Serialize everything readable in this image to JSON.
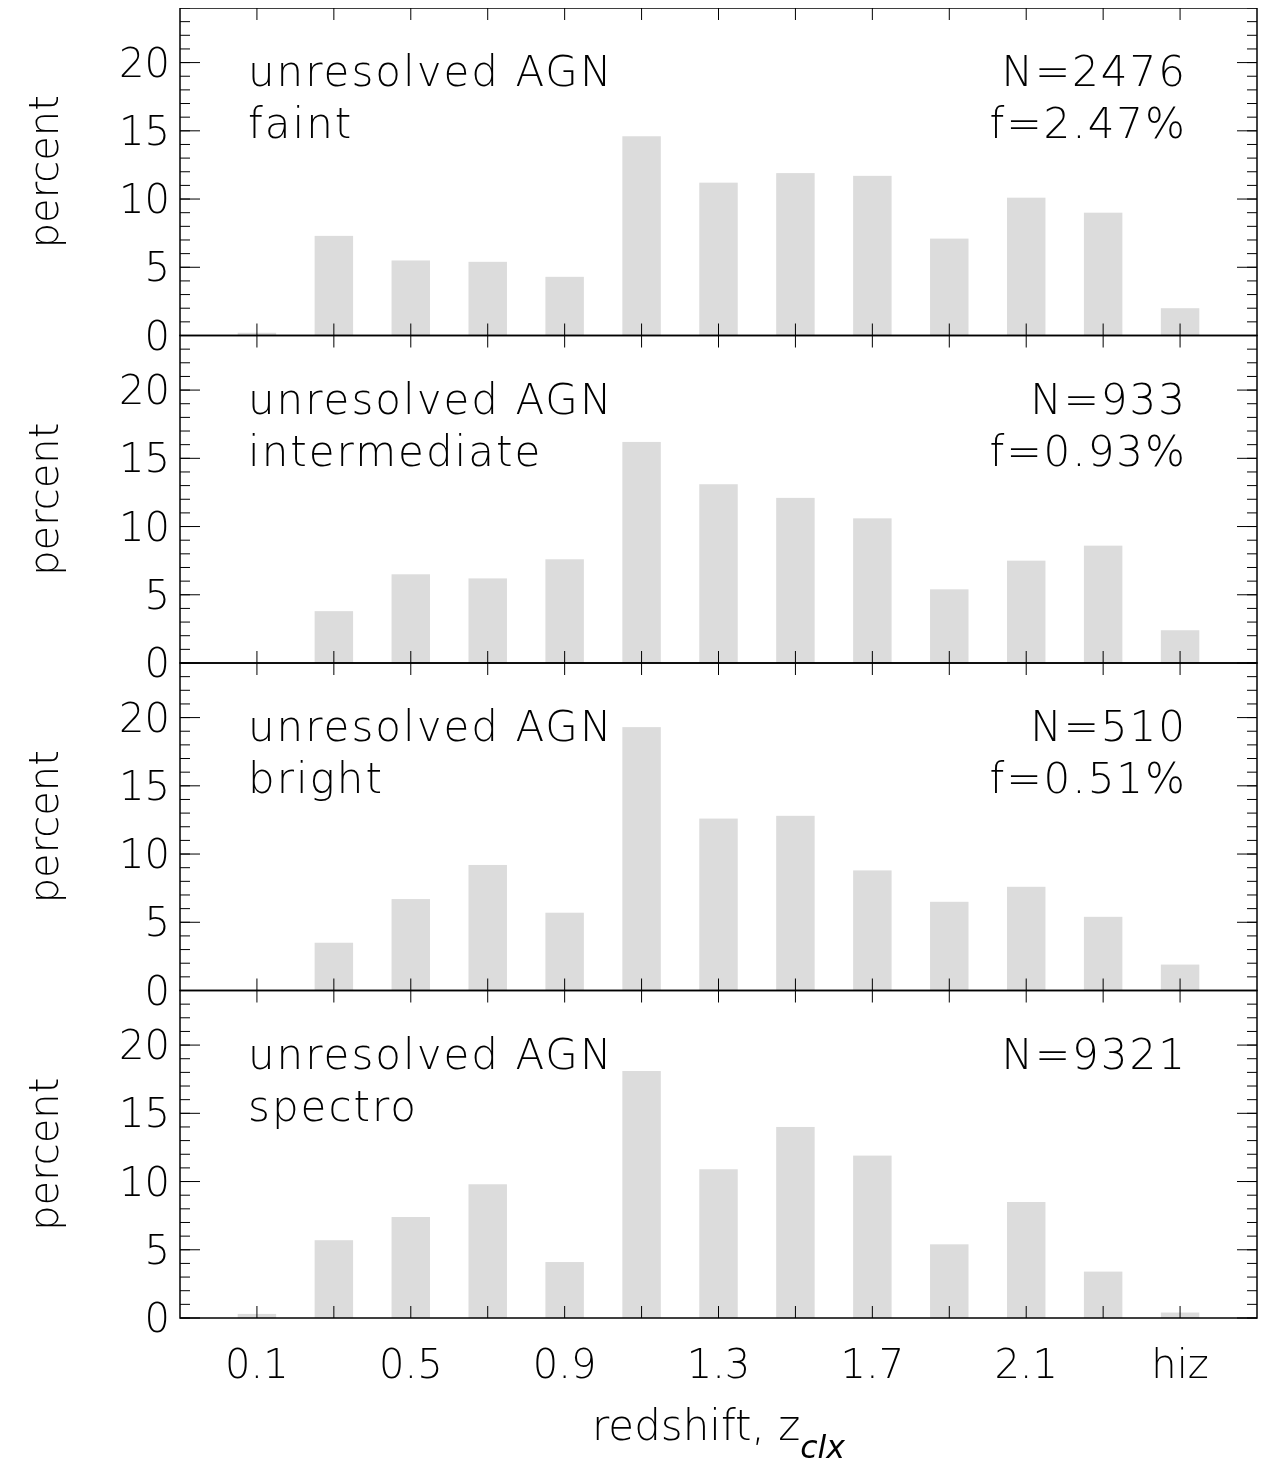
{
  "chart_data": [
    {
      "type": "bar",
      "title": "unresolved AGN",
      "subtitle": "faint",
      "annotations": [
        "N=2476",
        "f=2.47%"
      ],
      "ylabel": "percent",
      "categories": [
        null,
        null,
        null,
        null,
        null,
        null,
        null,
        null,
        null,
        null,
        null,
        null,
        null
      ],
      "values": [
        0.2,
        7.3,
        5.5,
        5.4,
        4.3,
        14.6,
        11.2,
        11.9,
        11.7,
        7.1,
        10.1,
        9.0,
        2.0
      ],
      "color": "#dcdcdc",
      "ylim": [
        0,
        24
      ],
      "yticks": [
        0,
        5,
        10,
        15,
        20
      ]
    },
    {
      "type": "bar",
      "title": "unresolved AGN",
      "subtitle": "intermediate",
      "annotations": [
        "N=933",
        "f=0.93%"
      ],
      "ylabel": "percent",
      "categories": [
        null,
        null,
        null,
        null,
        null,
        null,
        null,
        null,
        null,
        null,
        null,
        null,
        null
      ],
      "values": [
        0,
        3.8,
        6.5,
        6.2,
        7.6,
        16.2,
        13.1,
        12.1,
        10.6,
        5.4,
        7.5,
        8.6,
        2.4
      ],
      "color": "#dcdcdc",
      "ylim": [
        0,
        24
      ],
      "yticks": [
        0,
        5,
        10,
        15,
        20
      ]
    },
    {
      "type": "bar",
      "title": "unresolved AGN",
      "subtitle": "bright",
      "annotations": [
        "N=510",
        "f=0.51%"
      ],
      "ylabel": "percent",
      "categories": [
        null,
        null,
        null,
        null,
        null,
        null,
        null,
        null,
        null,
        null,
        null,
        null,
        null
      ],
      "values": [
        0,
        3.5,
        6.7,
        9.2,
        5.7,
        19.3,
        12.6,
        12.8,
        8.8,
        6.5,
        7.6,
        5.4,
        1.9
      ],
      "color": "#dcdcdc",
      "ylim": [
        0,
        24
      ],
      "yticks": [
        0,
        5,
        10,
        15,
        20
      ]
    },
    {
      "type": "bar",
      "title": "unresolved AGN",
      "subtitle": "spectro",
      "annotations": [
        "N=9321"
      ],
      "ylabel": "percent",
      "xlabel": "redshift, z$_{clx}$",
      "categories": [
        "0.1",
        null,
        "0.5",
        null,
        "0.9",
        null,
        "1.3",
        null,
        "1.7",
        null,
        "2.1",
        null,
        "hiz"
      ],
      "values": [
        0.3,
        5.7,
        7.4,
        9.8,
        4.1,
        18.1,
        10.9,
        14.0,
        11.9,
        5.4,
        8.5,
        3.4,
        0.4
      ],
      "color": "#dcdcdc",
      "ylim": [
        0,
        24
      ],
      "yticks": [
        0,
        5,
        10,
        15,
        20
      ]
    }
  ]
}
